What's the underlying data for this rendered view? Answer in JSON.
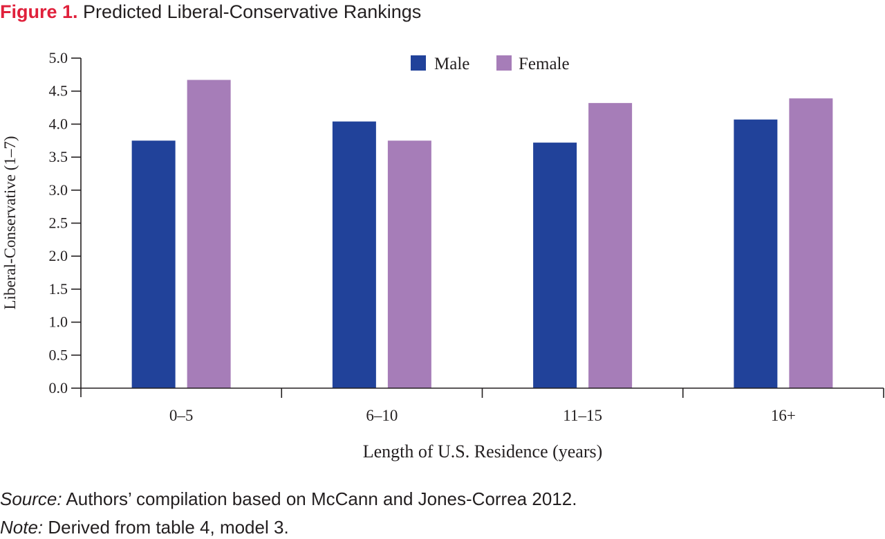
{
  "figure": {
    "label": "Figure 1.",
    "title": "Predicted Liberal-Conservative Rankings",
    "source_label": "Source:",
    "source_text": "Authors’ compilation based on McCann and Jones-Correa 2012.",
    "note_label": "Note:",
    "note_text": "Derived from table 4, model 3."
  },
  "colors": {
    "title_label": "#e0203b",
    "male": "#21429a",
    "female": "#a67db8",
    "axis": "#231f20"
  },
  "chart_data": {
    "type": "bar",
    "title": "Predicted Liberal-Conservative Rankings",
    "xlabel": "Length of U.S. Residence (years)",
    "ylabel": "Liberal-Conservative (1–7)",
    "categories": [
      "0–5",
      "6–10",
      "11–15",
      "16+"
    ],
    "series": [
      {
        "name": "Male",
        "color": "#21429a",
        "values": [
          3.75,
          4.04,
          3.72,
          4.07
        ]
      },
      {
        "name": "Female",
        "color": "#a67db8",
        "values": [
          4.67,
          3.75,
          4.32,
          4.39
        ]
      }
    ],
    "ylim": [
      0,
      5
    ],
    "yticks": [
      "0.0",
      "0.5",
      "1.0",
      "1.5",
      "2.0",
      "2.5",
      "3.0",
      "3.5",
      "4.0",
      "4.5",
      "5.0"
    ],
    "grid": false,
    "legend": "top-center"
  }
}
